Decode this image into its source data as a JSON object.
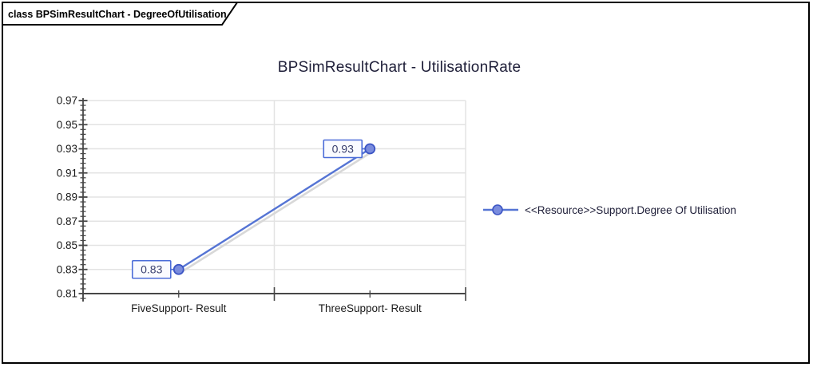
{
  "frame": {
    "tab_label": "class BPSimResultChart - DegreeOfUtilisation"
  },
  "chart_data": {
    "type": "line",
    "title": "BPSimResultChart - UtilisationRate",
    "categories": [
      "FiveSupport- Result",
      "ThreeSupport- Result"
    ],
    "series": [
      {
        "name": "<<Resource>>Support.Degree Of Utilisation",
        "values": [
          0.83,
          0.93
        ],
        "point_labels": [
          "0.83",
          "0.93"
        ]
      }
    ],
    "ylim": [
      0.81,
      0.97
    ],
    "ytick_step": 0.02,
    "minor_ticks_per_major": 5,
    "ytick_labels": [
      "0.81",
      "0.83",
      "0.85",
      "0.87",
      "0.89",
      "0.91",
      "0.93",
      "0.95",
      "0.97"
    ],
    "grid": {
      "horizontal": true,
      "vertical_category_boundaries": true
    },
    "legend_position": "right"
  },
  "colors": {
    "series_line": "#5574d4",
    "marker_fill": "#7a8cdd",
    "marker_stroke": "#3c55c4",
    "line_shadow": "#d8d8d8",
    "grid_line": "#e3e3e3",
    "axis": "#474747",
    "point_label_border": "#4b6cd8",
    "point_label_bg": "#fafbff",
    "point_label_text": "#3a4170",
    "title_text": "#1e1e38",
    "axis_label_text": "#1a1a1a",
    "legend_text": "#1e1e38",
    "frame_border": "#000000"
  }
}
